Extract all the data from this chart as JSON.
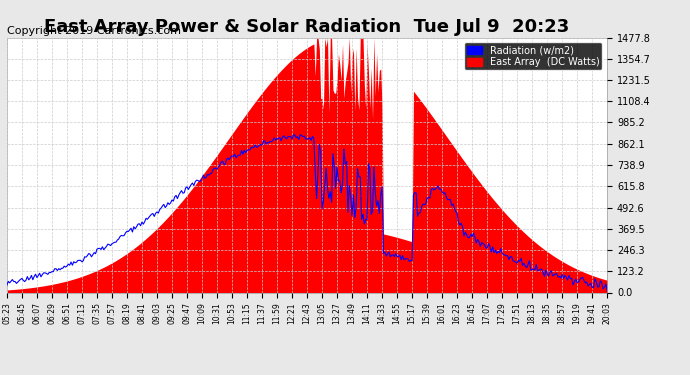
{
  "title": "East Array Power & Solar Radiation  Tue Jul 9  20:23",
  "copyright": "Copyright 2019 Cartronics.com",
  "legend_labels": [
    "Radiation (w/m2)",
    "East Array  (DC Watts)"
  ],
  "legend_colors": [
    "blue",
    "red"
  ],
  "y_ticks": [
    0.0,
    123.2,
    246.3,
    369.5,
    492.6,
    615.8,
    738.9,
    862.1,
    985.2,
    1108.4,
    1231.5,
    1354.7,
    1477.8
  ],
  "y_max": 1477.8,
  "background_color": "#e8e8e8",
  "plot_bg_color": "#ffffff",
  "grid_color": "#cccccc",
  "fill_color": "#ff0000",
  "line_color": "#0000ff",
  "title_fontsize": 13,
  "copyright_fontsize": 8,
  "x_tick_interval": 2
}
